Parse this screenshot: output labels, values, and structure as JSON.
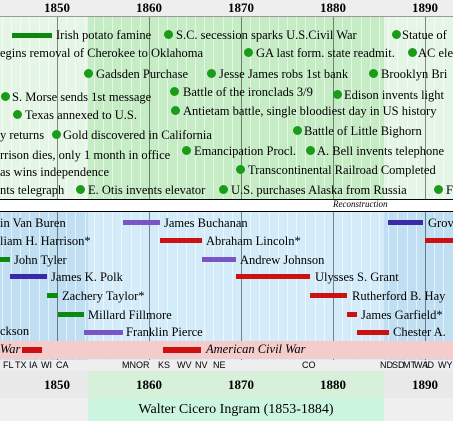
{
  "top_axis_years": [
    "1850",
    "1860",
    "1870",
    "1880",
    "1890"
  ],
  "bottom_axis_years": [
    "1850",
    "1860",
    "1870",
    "1880",
    "1890"
  ],
  "events": [
    "Irish potato famine",
    "S.C. secession sparks U.S.Civil War",
    "Statue of",
    "egins removal of Cherokee to Oklahoma",
    "GA last form. state readmit.",
    "AC ele",
    "Gadsden Purchase",
    "Jesse James robs 1st bank",
    "Brooklyn Bri",
    "S. Morse sends 1st message",
    "Battle of the ironclads 3/9",
    "Edison invents light",
    "Texas annexed to U.S.",
    "Antietam battle, single bloodiest day in US history",
    "y returns",
    "Gold discovered in California",
    "Battle of Little Bighorn",
    "rrison dies, only 1 month in office",
    "Emancipation Procl.",
    "A. Bell invents telephone",
    "as wins independence",
    "Transcontinental Railroad Completed",
    "nts telegraph",
    "E. Otis invents elevator",
    "U.S. purchases Alaska from Russia",
    "F"
  ],
  "era_label": "Reconstruction",
  "presidents": [
    "in Van Buren",
    "James Buchanan",
    "Grov",
    "liam H. Harrison*",
    "Abraham Lincoln*",
    "John Tyler",
    "Andrew Johnson",
    "James K. Polk",
    "Ulysses S. Grant",
    "Zachery Taylor*",
    "Rutherford B. Hay",
    "Millard Fillmore",
    "James Garfield*",
    "ckson",
    "Franklin Pierce",
    "Chester A."
  ],
  "wars": [
    "War",
    "American Civil War"
  ],
  "statehood": [
    "FL",
    "TX",
    "IA",
    "WI",
    "CA",
    "MN",
    "OR",
    "KS",
    "WV",
    "NV",
    "NE",
    "CO",
    "ND",
    "SD",
    "MT",
    "WA",
    "ID",
    "WY"
  ],
  "footer_title": "Walter Cicero Ingram  (1853-1884)",
  "colors": {
    "event_dot": "#1a9b1a",
    "whig_bar": "#0d8a0d",
    "democrat_bar": "#4040a0",
    "republican_bar": "#cc1111",
    "war_band": "#f4c6c6",
    "lifespan_band": "#d8f5e0"
  }
}
